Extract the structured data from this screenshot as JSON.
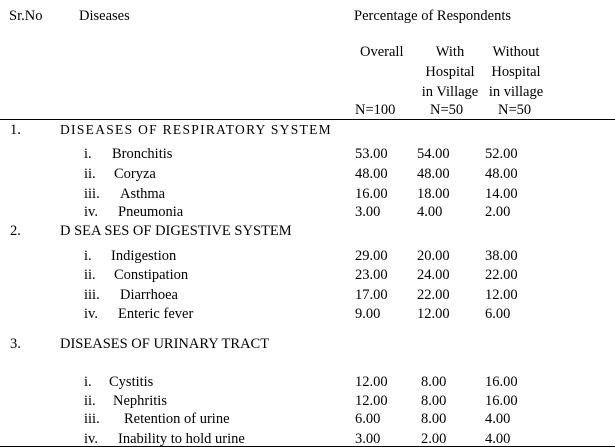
{
  "header": {
    "sr_no": "Sr.No",
    "diseases": "Diseases",
    "group_title": "Percentage of Respondents",
    "col_overall": "Overall",
    "col_with": [
      "With",
      "Hospital",
      "in Village"
    ],
    "col_without": [
      "Without",
      "Hospital",
      "in village"
    ],
    "n_overall": "N=100",
    "n_with": "N=50",
    "n_without": "N=50"
  },
  "sections": [
    {
      "number": "1.",
      "title": "DISEASES OF RESPIRATORY SYSTEM",
      "rows": [
        {
          "num": "i.",
          "name": "Bronchitis",
          "overall": "53.00",
          "with": "54.00",
          "without": "52.00"
        },
        {
          "num": "ii.",
          "name": "Coryza",
          "overall": "48.00",
          "with": "48.00",
          "without": "48.00"
        },
        {
          "num": "iii.",
          "name": "Asthma",
          "overall": "16.00",
          "with": "18.00",
          "without": "14.00"
        },
        {
          "num": "iv.",
          "name": "Pneumonia",
          "overall": "3.00",
          "with": "4.00",
          "without": "2.00"
        }
      ]
    },
    {
      "number": "2.",
      "title": "D SEA SES OF DIGESTIVE SYSTEM",
      "rows": [
        {
          "num": "i.",
          "name": "Indigestion",
          "overall": "29.00",
          "with": "20.00",
          "without": "38.00"
        },
        {
          "num": "ii.",
          "name": "Constipation",
          "overall": "23.00",
          "with": "24.00",
          "without": "22.00"
        },
        {
          "num": "iii.",
          "name": "Diarrhoea",
          "overall": "17.00",
          "with": "22.00",
          "without": "12.00"
        },
        {
          "num": "iv.",
          "name": "Enteric fever",
          "overall": "9.00",
          "with": "12.00",
          "without": "6.00"
        }
      ]
    },
    {
      "number": "3.",
      "title": "DISEASES OF URINARY TRACT",
      "rows": [
        {
          "num": "i.",
          "name": "Cystitis",
          "overall": "12.00",
          "with": "8.00",
          "without": "16.00"
        },
        {
          "num": "ii.",
          "name": "Nephritis",
          "overall": "12.00",
          "with": "8.00",
          "without": "16.00"
        },
        {
          "num": "iii.",
          "name": "Retention of urine",
          "overall": "6.00",
          "with": "8.00",
          "without": "4.00"
        },
        {
          "num": "iv.",
          "name": "Inability to hold urine",
          "overall": "3.00",
          "with": "2.00",
          "without": "4.00"
        }
      ]
    }
  ]
}
